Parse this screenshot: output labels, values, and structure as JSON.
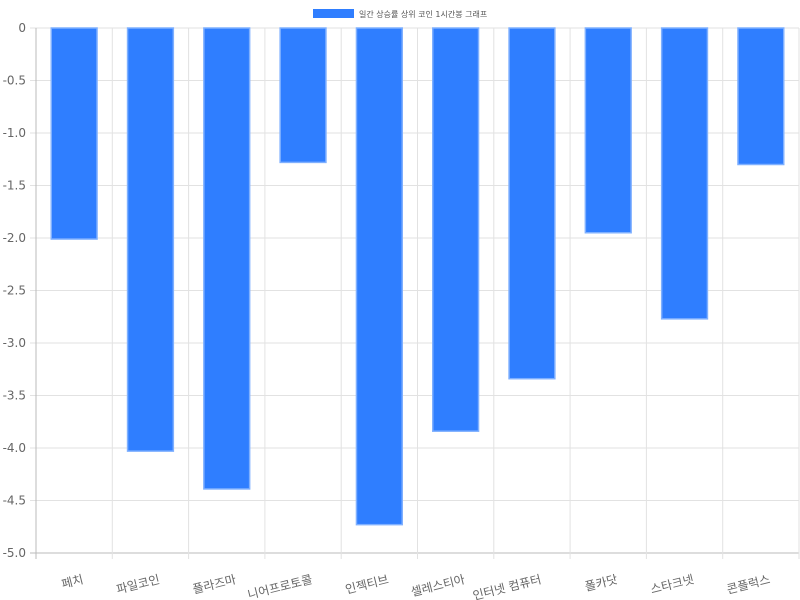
{
  "chart_data": {
    "type": "bar",
    "title": "",
    "xlabel": "",
    "ylabel": "",
    "legend": {
      "position": "top",
      "entries": [
        "일간 상승률 상위 코인 1시간봉 그래프"
      ]
    },
    "categories": [
      "페치",
      "파일코인",
      "플라즈마",
      "니어프로토콜",
      "인젝티브",
      "셀레스티아",
      "인터넷 컴퓨터",
      "폴카닷",
      "스타크넷",
      "콘플럭스"
    ],
    "series": [
      {
        "name": "일간 상승률 상위 코인 1시간봉 그래프",
        "color": "#2f7eff",
        "border_color": "#7fb0ff",
        "values": [
          -2.01,
          -4.03,
          -4.39,
          -1.28,
          -4.73,
          -3.84,
          -3.34,
          -1.95,
          -2.77,
          -1.3
        ]
      }
    ],
    "ylim": [
      -5.0,
      0
    ],
    "yticks": [
      "0",
      "-0.5",
      "-1.0",
      "-1.5",
      "-2.0",
      "-2.5",
      "-3.0",
      "-3.5",
      "-4.0",
      "-4.5",
      "-5.0"
    ],
    "grid": true
  }
}
